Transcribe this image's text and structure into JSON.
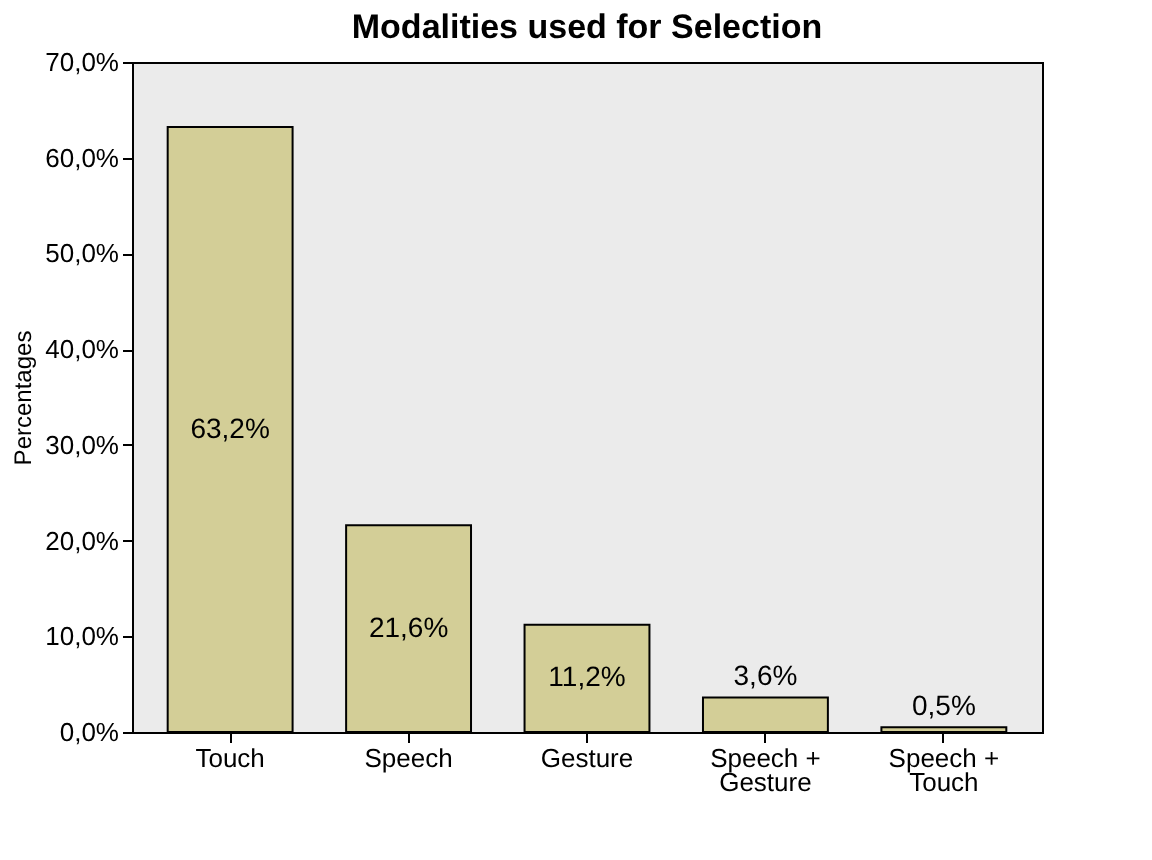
{
  "chart_data": {
    "type": "bar",
    "title": "Modalities used for Selection",
    "ylabel": "Percentages",
    "categories": [
      "Touch",
      "Speech",
      "Gesture",
      "Speech + Gesture",
      "Speech + Touch"
    ],
    "values": [
      63.2,
      21.6,
      11.2,
      3.6,
      0.5
    ],
    "color": "#d3ce97",
    "value_labels": [
      "63,2%",
      "21,6%",
      "11,2%",
      "3,6%",
      "0,5%"
    ],
    "ylim": [
      0,
      70
    ],
    "yticks": [
      {
        "value": 0,
        "label": "0,0%"
      },
      {
        "value": 10,
        "label": "10,0%"
      },
      {
        "value": 20,
        "label": "20,0%"
      },
      {
        "value": 30,
        "label": "30,0%"
      },
      {
        "value": 40,
        "label": "40,0%"
      },
      {
        "value": 50,
        "label": "50,0%"
      },
      {
        "value": 60,
        "label": "60,0%"
      },
      {
        "value": 70,
        "label": "70,0%"
      }
    ],
    "grid": false
  }
}
